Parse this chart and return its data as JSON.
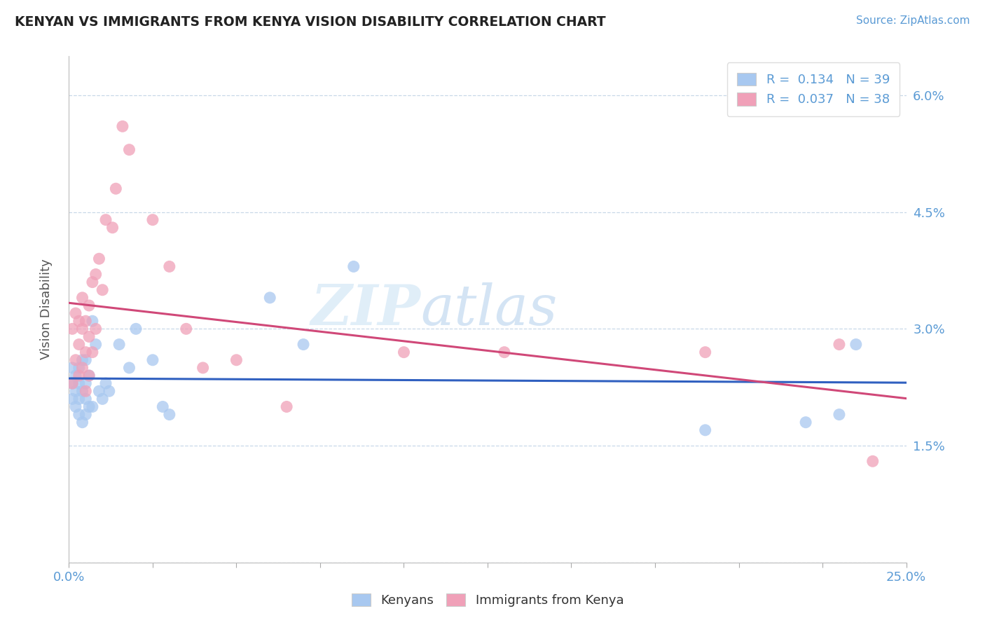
{
  "title": "KENYAN VS IMMIGRANTS FROM KENYA VISION DISABILITY CORRELATION CHART",
  "source": "Source: ZipAtlas.com",
  "ylabel": "Vision Disability",
  "xlabel": "",
  "xlim": [
    0.0,
    0.25
  ],
  "ylim": [
    0.0,
    0.065
  ],
  "yticks": [
    0.0,
    0.015,
    0.03,
    0.045,
    0.06
  ],
  "ytick_labels": [
    "",
    "1.5%",
    "3.0%",
    "4.5%",
    "6.0%"
  ],
  "xticks": [
    0.0,
    0.025,
    0.05,
    0.075,
    0.1,
    0.125,
    0.15,
    0.175,
    0.2,
    0.225,
    0.25
  ],
  "xtick_labels": [
    "0.0%",
    "",
    "",
    "",
    "",
    "",
    "",
    "",
    "",
    "",
    "25.0%"
  ],
  "legend_r1": "R =  0.134",
  "legend_n1": "N = 39",
  "legend_r2": "R =  0.037",
  "legend_n2": "N = 38",
  "color_kenyan": "#A8C8F0",
  "color_immigrant": "#F0A0B8",
  "color_line_kenyan": "#3060C0",
  "color_line_immigrant": "#D04878",
  "watermark_zip": "ZIP",
  "watermark_atlas": "atlas",
  "scatter_kenyan_x": [
    0.001,
    0.001,
    0.001,
    0.002,
    0.002,
    0.002,
    0.003,
    0.003,
    0.003,
    0.003,
    0.004,
    0.004,
    0.004,
    0.005,
    0.005,
    0.005,
    0.005,
    0.006,
    0.006,
    0.007,
    0.007,
    0.008,
    0.009,
    0.01,
    0.011,
    0.012,
    0.015,
    0.018,
    0.02,
    0.025,
    0.028,
    0.03,
    0.06,
    0.07,
    0.085,
    0.19,
    0.22,
    0.23,
    0.235
  ],
  "scatter_kenyan_y": [
    0.021,
    0.023,
    0.025,
    0.02,
    0.022,
    0.024,
    0.019,
    0.021,
    0.023,
    0.025,
    0.018,
    0.022,
    0.026,
    0.019,
    0.021,
    0.023,
    0.026,
    0.02,
    0.024,
    0.02,
    0.031,
    0.028,
    0.022,
    0.021,
    0.023,
    0.022,
    0.028,
    0.025,
    0.03,
    0.026,
    0.02,
    0.019,
    0.034,
    0.028,
    0.038,
    0.017,
    0.018,
    0.019,
    0.028
  ],
  "scatter_immigrant_x": [
    0.001,
    0.001,
    0.002,
    0.002,
    0.003,
    0.003,
    0.003,
    0.004,
    0.004,
    0.004,
    0.005,
    0.005,
    0.005,
    0.006,
    0.006,
    0.006,
    0.007,
    0.007,
    0.008,
    0.008,
    0.009,
    0.01,
    0.011,
    0.013,
    0.014,
    0.016,
    0.018,
    0.025,
    0.03,
    0.035,
    0.04,
    0.05,
    0.065,
    0.1,
    0.13,
    0.19,
    0.23,
    0.24
  ],
  "scatter_immigrant_y": [
    0.023,
    0.03,
    0.026,
    0.032,
    0.024,
    0.028,
    0.031,
    0.025,
    0.03,
    0.034,
    0.022,
    0.027,
    0.031,
    0.024,
    0.029,
    0.033,
    0.027,
    0.036,
    0.03,
    0.037,
    0.039,
    0.035,
    0.044,
    0.043,
    0.048,
    0.056,
    0.053,
    0.044,
    0.038,
    0.03,
    0.025,
    0.026,
    0.02,
    0.027,
    0.027,
    0.027,
    0.028,
    0.013
  ]
}
